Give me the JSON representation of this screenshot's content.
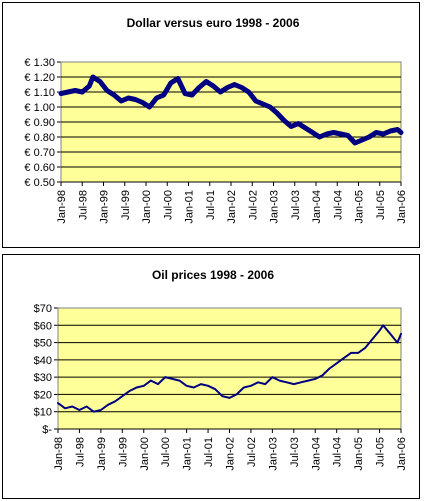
{
  "chart_data": [
    {
      "type": "line",
      "title": "Dollar versus euro 1998 - 2006",
      "xlabel": "",
      "ylabel": "",
      "ylim": [
        0.5,
        1.3
      ],
      "y_ticks": [
        "€ 0.50",
        "€ 0.60",
        "€ 0.70",
        "€ 0.80",
        "€ 0.90",
        "€ 1.00",
        "€ 1.10",
        "€ 1.20",
        "€ 1.30"
      ],
      "x_ticks": [
        "Jan-98",
        "Jul-98",
        "Jan-99",
        "Jul-99",
        "Jan-00",
        "Jul-00",
        "Jan-01",
        "Jul-01",
        "Jan-02",
        "Jul-02",
        "Jan-03",
        "Jul-03",
        "Jan-04",
        "Jul-04",
        "Jan-05",
        "Jul-05",
        "Jan-06"
      ],
      "grid": "horizontal",
      "plot_background": "#FFFF99",
      "series_color": "#000080",
      "series": [
        {
          "x": [
            "1998-01",
            "1998-03",
            "1998-05",
            "1998-07",
            "1998-09",
            "1998-10",
            "1998-12",
            "1999-02",
            "1999-04",
            "1999-06",
            "1999-08",
            "1999-10",
            "1999-12",
            "2000-02",
            "2000-04",
            "2000-06",
            "2000-08",
            "2000-10",
            "2000-12",
            "2001-02",
            "2001-04",
            "2001-06",
            "2001-08",
            "2001-10",
            "2001-12",
            "2002-02",
            "2002-04",
            "2002-06",
            "2002-08",
            "2002-10",
            "2002-12",
            "2003-02",
            "2003-04",
            "2003-06",
            "2003-08",
            "2003-10",
            "2003-12",
            "2004-02",
            "2004-04",
            "2004-06",
            "2004-08",
            "2004-10",
            "2004-12",
            "2005-02",
            "2005-04",
            "2005-06",
            "2005-08",
            "2005-10",
            "2005-12",
            "2006-01"
          ],
          "values": [
            1.09,
            1.1,
            1.11,
            1.1,
            1.14,
            1.2,
            1.17,
            1.11,
            1.08,
            1.04,
            1.06,
            1.05,
            1.03,
            1.0,
            1.06,
            1.08,
            1.16,
            1.19,
            1.09,
            1.08,
            1.13,
            1.17,
            1.14,
            1.1,
            1.13,
            1.15,
            1.13,
            1.1,
            1.04,
            1.02,
            1.0,
            0.96,
            0.91,
            0.87,
            0.89,
            0.86,
            0.83,
            0.8,
            0.82,
            0.83,
            0.82,
            0.81,
            0.76,
            0.78,
            0.8,
            0.83,
            0.82,
            0.84,
            0.85,
            0.83
          ]
        }
      ]
    },
    {
      "type": "line",
      "title": "Oil prices 1998 - 2006",
      "xlabel": "",
      "ylabel": "",
      "ylim": [
        0,
        70
      ],
      "y_ticks": [
        "$-",
        "$10",
        "$20",
        "$30",
        "$40",
        "$50",
        "$60",
        "$70"
      ],
      "x_ticks": [
        "Jan-98",
        "Jul-98",
        "Jan-99",
        "Jul-99",
        "Jan-00",
        "Jul-00",
        "Jan-01",
        "Jul-01",
        "Jan-02",
        "Jul-02",
        "Jan-03",
        "Jul-03",
        "Jan-04",
        "Jul-04",
        "Jan-05",
        "Jul-05",
        "Jan-06"
      ],
      "grid": "horizontal",
      "plot_background": "#FFFF99",
      "series_color": "#000080",
      "series": [
        {
          "x": [
            "1998-01",
            "1998-03",
            "1998-05",
            "1998-07",
            "1998-09",
            "1998-11",
            "1999-01",
            "1999-03",
            "1999-05",
            "1999-07",
            "1999-09",
            "1999-11",
            "2000-01",
            "2000-03",
            "2000-05",
            "2000-07",
            "2000-09",
            "2000-11",
            "2001-01",
            "2001-03",
            "2001-05",
            "2001-07",
            "2001-09",
            "2001-11",
            "2002-01",
            "2002-03",
            "2002-05",
            "2002-07",
            "2002-09",
            "2002-11",
            "2003-01",
            "2003-03",
            "2003-05",
            "2003-07",
            "2003-09",
            "2003-11",
            "2004-01",
            "2004-03",
            "2004-05",
            "2004-07",
            "2004-09",
            "2004-11",
            "2005-01",
            "2005-03",
            "2005-05",
            "2005-07",
            "2005-08",
            "2005-10",
            "2005-12",
            "2006-01"
          ],
          "values": [
            15,
            12,
            13,
            11,
            13,
            10,
            11,
            14,
            16,
            19,
            22,
            24,
            25,
            28,
            26,
            30,
            29,
            28,
            25,
            24,
            26,
            25,
            23,
            19,
            18,
            20,
            24,
            25,
            27,
            26,
            30,
            28,
            27,
            26,
            27,
            28,
            29,
            31,
            35,
            38,
            41,
            44,
            44,
            47,
            52,
            57,
            60,
            55,
            50,
            55
          ]
        }
      ]
    }
  ]
}
